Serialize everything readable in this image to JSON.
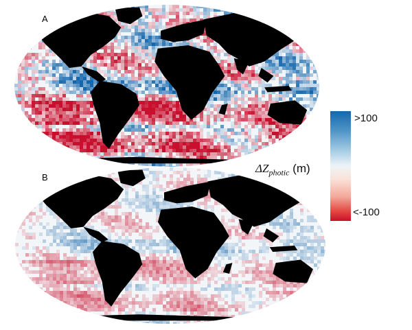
{
  "figure": {
    "panels": [
      {
        "label": "A",
        "intensity": 1.0
      },
      {
        "label": "B",
        "intensity": 0.45
      }
    ],
    "colorbar": {
      "max_label": ">100",
      "min_label": "<-100",
      "title_prefix": "ΔZ",
      "title_subscript": "photic",
      "title_unit": "(m)",
      "colors": {
        "high": "#1467ad",
        "mid": "#f4f6f8",
        "low": "#c8102e"
      }
    },
    "land_color": "#000000"
  }
}
